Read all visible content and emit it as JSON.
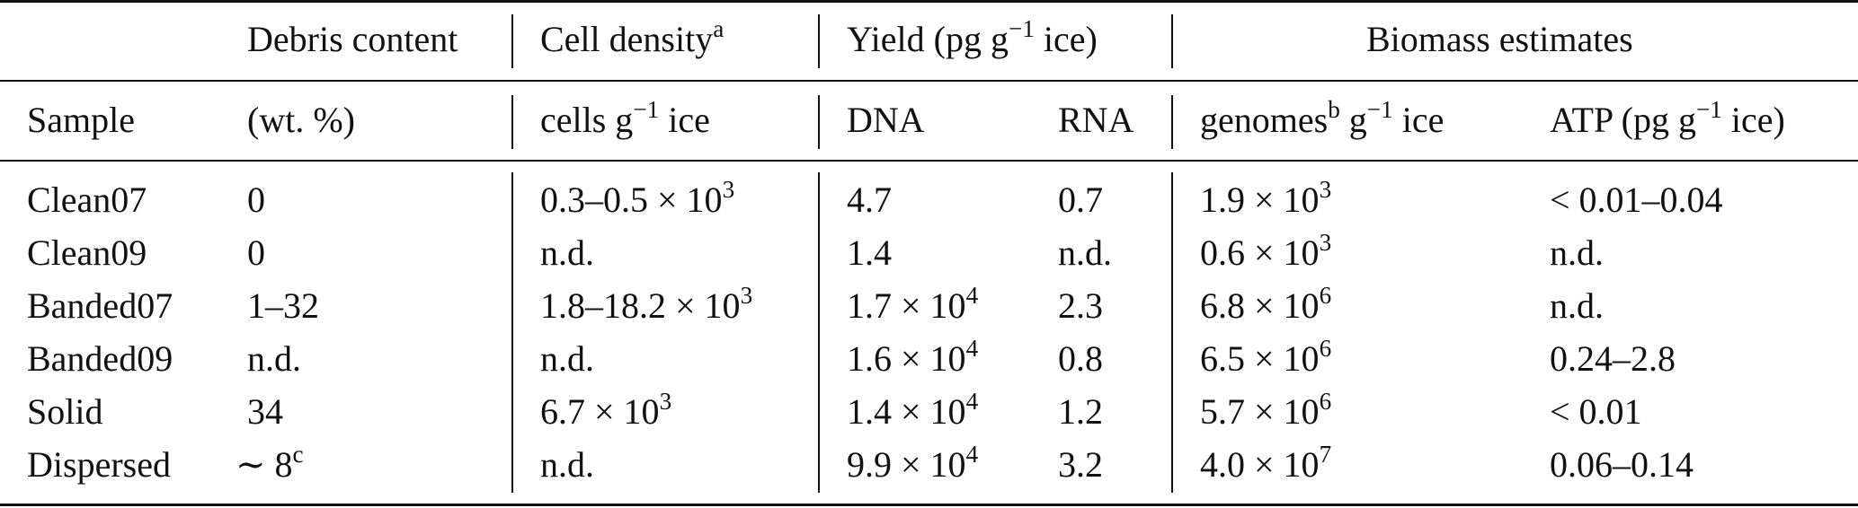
{
  "table": {
    "header_row1": {
      "debris": "Debris content",
      "cell_density": "Cell density",
      "cell_density_sup": "a",
      "yield_pre": "Yield (pg g",
      "yield_sup": "−1",
      "yield_post": " ice)",
      "biomass": "Biomass estimates"
    },
    "header_row2": {
      "sample": "Sample",
      "debris_unit": "(wt. %)",
      "cells_pre": "cells g",
      "cells_sup": "−1",
      "cells_post": " ice",
      "dna": "DNA",
      "rna": "RNA",
      "genomes_pre": "genomes",
      "genomes_sup": "b",
      "genomes_mid": " g",
      "genomes_sup2": "−1",
      "genomes_post": " ice",
      "atp_pre": "ATP (pg g",
      "atp_sup": "−1",
      "atp_post": " ice)"
    },
    "rows": [
      {
        "sample": "Clean07",
        "debris": "0",
        "debris_sup": "",
        "cells": "0.3–0.5 × 10",
        "cells_sup": "3",
        "dna": "4.7",
        "dna_sup": "",
        "rna": "0.7",
        "genomes": "1.9 × 10",
        "genomes_sup": "3",
        "atp": "< 0.01–0.04"
      },
      {
        "sample": "Clean09",
        "debris": "0",
        "debris_sup": "",
        "cells": "n.d.",
        "cells_sup": "",
        "dna": "1.4",
        "dna_sup": "",
        "rna": "n.d.",
        "genomes": "0.6 × 10",
        "genomes_sup": "3",
        "atp": "n.d."
      },
      {
        "sample": "Banded07",
        "debris": "1–32",
        "debris_sup": "",
        "cells": "1.8–18.2 × 10",
        "cells_sup": "3",
        "dna": "1.7 × 10",
        "dna_sup": "4",
        "rna": "2.3",
        "genomes": "6.8 × 10",
        "genomes_sup": "6",
        "atp": "n.d."
      },
      {
        "sample": "Banded09",
        "debris": "n.d.",
        "debris_sup": "",
        "cells": "n.d.",
        "cells_sup": "",
        "dna": "1.6 × 10",
        "dna_sup": "4",
        "rna": "0.8",
        "genomes": "6.5 × 10",
        "genomes_sup": "6",
        "atp": "0.24–2.8"
      },
      {
        "sample": "Solid",
        "debris": "34",
        "debris_sup": "",
        "cells": "6.7 × 10",
        "cells_sup": "3",
        "dna": "1.4 × 10",
        "dna_sup": "4",
        "rna": "1.2",
        "genomes": "5.7 × 10",
        "genomes_sup": "6",
        "atp": "< 0.01"
      },
      {
        "sample": "Dispersed",
        "debris": "∼ 8",
        "debris_sup": "c",
        "cells": "n.d.",
        "cells_sup": "",
        "dna": "9.9 × 10",
        "dna_sup": "4",
        "rna": "3.2",
        "genomes": "4.0 × 10",
        "genomes_sup": "7",
        "atp": "0.06–0.14"
      }
    ]
  }
}
